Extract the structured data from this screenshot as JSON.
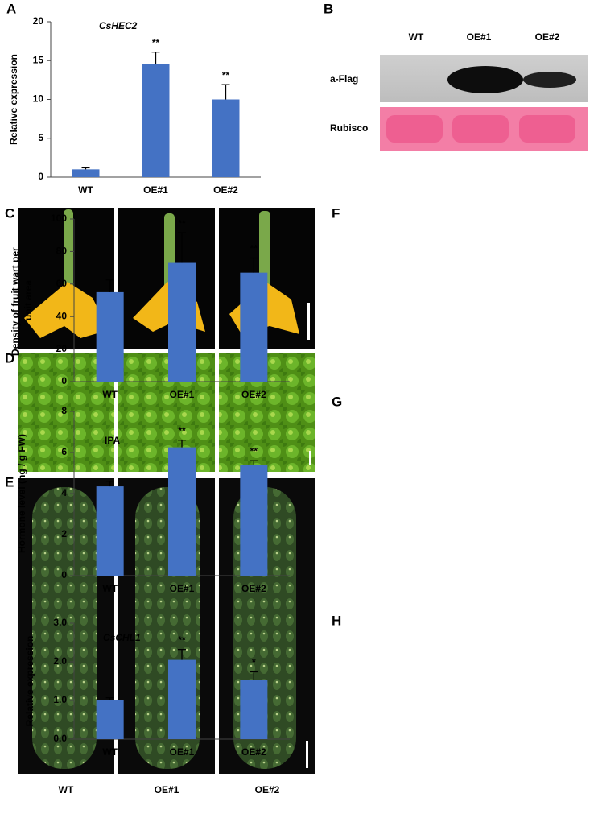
{
  "panel_labels": [
    "A",
    "B",
    "C",
    "D",
    "E",
    "F",
    "G",
    "H"
  ],
  "blot": {
    "lanes": [
      "WT",
      "OE#1",
      "OE#2"
    ],
    "rows": [
      "a-Flag",
      "Rubisco"
    ]
  },
  "photos": {
    "lanes": [
      "WT",
      "OE#1",
      "OE#2"
    ]
  },
  "chart_data": [
    {
      "type": "bar",
      "title": "CsHEC2",
      "ylabel": "Relative expression",
      "categories": [
        "WT",
        "OE#1",
        "OE#2"
      ],
      "values": [
        1.0,
        14.6,
        10.0
      ],
      "errors": [
        0.2,
        1.5,
        1.9
      ],
      "significance": [
        null,
        "**",
        "**"
      ],
      "color": "#4472c4",
      "ylim": [
        0,
        20
      ],
      "yticks": [
        0,
        5,
        10,
        15,
        20
      ]
    },
    {
      "type": "bar",
      "ylabel": "Density of fruit wart per unit area",
      "categories": [
        "WT",
        "OE#1",
        "OE#2"
      ],
      "values": [
        55,
        73,
        67
      ],
      "errors": [
        7.5,
        18.5,
        9
      ],
      "significance": [
        null,
        "**",
        "**"
      ],
      "color": "#4472c4",
      "ylim": [
        0,
        100
      ],
      "yticks": [
        0,
        20,
        40,
        60,
        80,
        100
      ]
    },
    {
      "type": "bar",
      "annotation": "IPA",
      "ylabel": "Hormone level (ng / g FW)",
      "categories": [
        "WT",
        "OE#1",
        "OE#2"
      ],
      "values": [
        4.35,
        6.25,
        5.4
      ],
      "errors": [
        0.25,
        0.35,
        0.2
      ],
      "significance": [
        null,
        "**",
        "**"
      ],
      "color": "#4472c4",
      "ylim": [
        0,
        8
      ],
      "yticks": [
        0,
        2,
        4,
        6,
        8
      ]
    },
    {
      "type": "bar",
      "title": "CsCHL1",
      "ylabel": "Relative expression",
      "categories": [
        "WT",
        "OE#1",
        "OE#2"
      ],
      "values": [
        1.0,
        2.05,
        1.53
      ],
      "errors": [
        0.07,
        0.27,
        0.21
      ],
      "significance": [
        null,
        "**",
        "*"
      ],
      "color": "#4472c4",
      "ylim": [
        0,
        3
      ],
      "yticks": [
        {
          "value": 0,
          "label": "0.0"
        },
        {
          "value": 1,
          "label": "1.0"
        },
        {
          "value": 2,
          "label": "2.0"
        },
        {
          "value": 3,
          "label": "3.0"
        }
      ]
    }
  ]
}
